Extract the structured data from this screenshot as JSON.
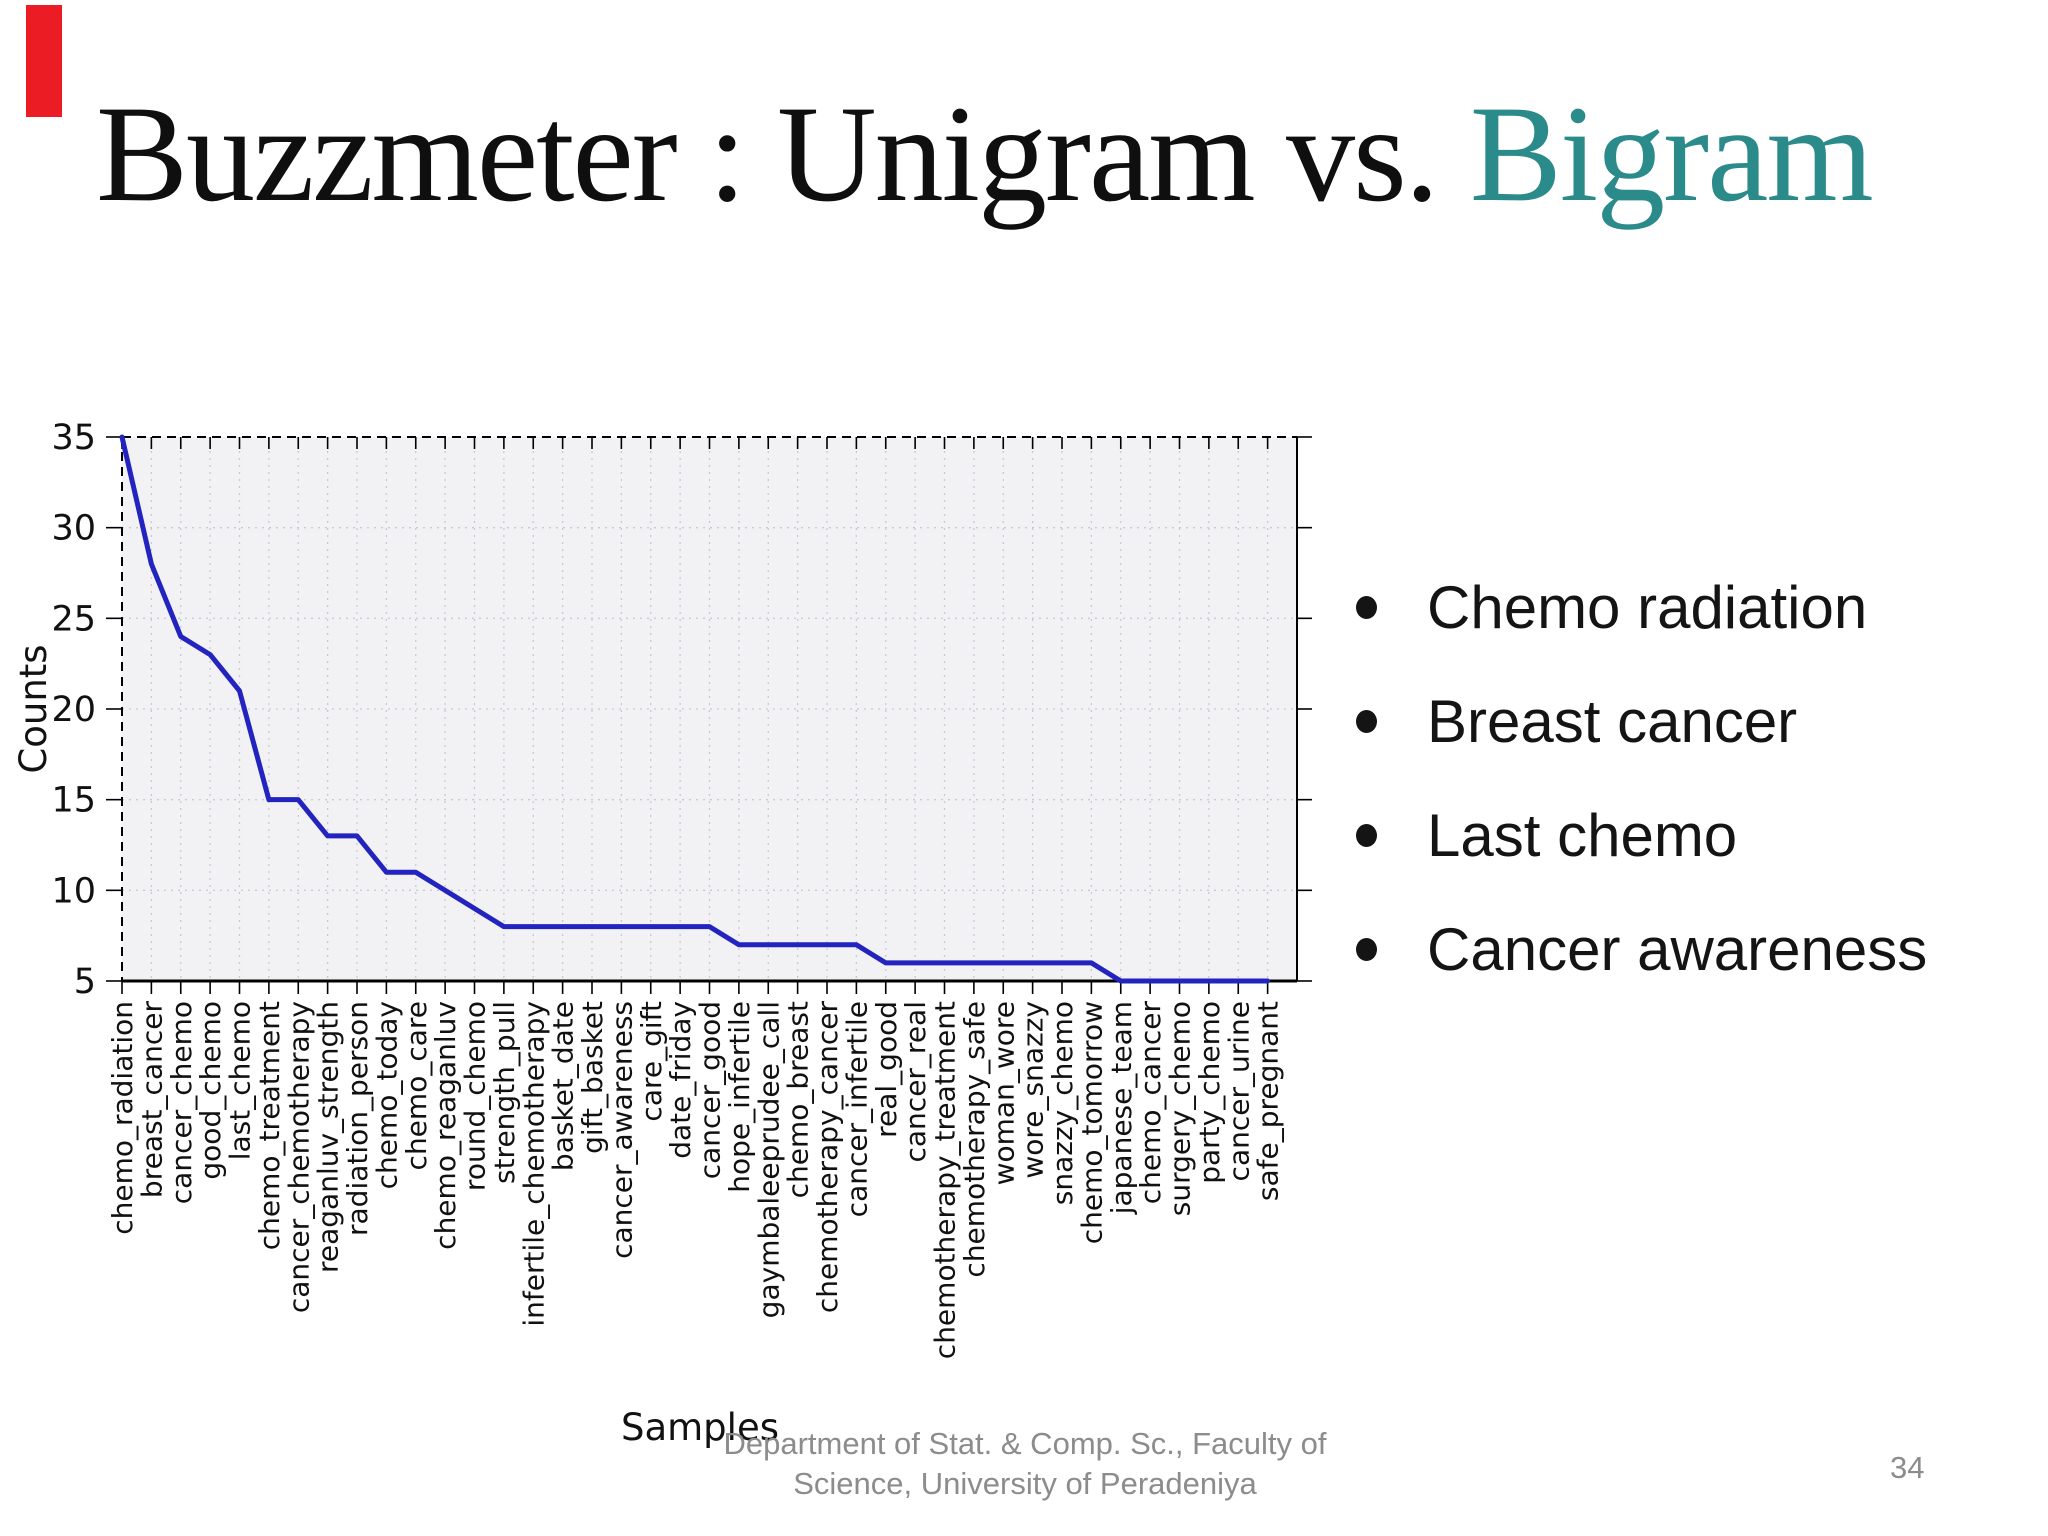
{
  "slide": {
    "title_main": "Buzzmeter : Unigram vs. ",
    "title_accent": "Bigram",
    "accent_color": "#2b8a8a",
    "red_bar_color": "#ec1c24",
    "bullets": [
      "Chemo radiation",
      "Breast cancer",
      "Last chemo",
      "Cancer awareness"
    ],
    "footer_line1": "Department of Stat. & Comp. Sc., Faculty of",
    "footer_line2": "Science, University of Peradeniya",
    "page_number": "34"
  },
  "chart_data": {
    "type": "line",
    "title": "",
    "xlabel": "Samples",
    "ylabel": "Counts",
    "ylim": [
      5,
      35
    ],
    "yticks": [
      5,
      10,
      15,
      20,
      25,
      30,
      35
    ],
    "grid": true,
    "legend": false,
    "line_color": "#2323bf",
    "plot_bg": "#f2f2f4",
    "grid_color": "#c9c9d2",
    "categories": [
      "chemo_radiation",
      "breast_cancer",
      "cancer_chemo",
      "good_chemo",
      "last_chemo",
      "chemo_treatment",
      "cancer_chemotherapy",
      "reaganluv_strength",
      "radiation_person",
      "chemo_today",
      "chemo_care",
      "chemo_reaganluv",
      "round_chemo",
      "strength_pull",
      "infertile_chemotherapy",
      "basket_date",
      "gift_basket",
      "cancer_awareness",
      "care_gift",
      "date_friday",
      "cancer_good",
      "hope_infertile",
      "gaymbaleeprudee_call",
      "chemo_breast",
      "chemotherapy_cancer",
      "cancer_infertile",
      "real_good",
      "cancer_real",
      "chemotherapy_treatment",
      "chemotherapy_safe",
      "woman_wore",
      "wore_snazzy",
      "snazzy_chemo",
      "chemo_tomorrow",
      "japanese_team",
      "chemo_cancer",
      "surgery_chemo",
      "party_chemo",
      "cancer_urine",
      "safe_pregnant"
    ],
    "values": [
      35,
      28,
      24,
      23,
      21,
      15,
      15,
      13,
      13,
      11,
      11,
      10,
      9,
      8,
      8,
      8,
      8,
      8,
      8,
      8,
      8,
      7,
      7,
      7,
      7,
      7,
      6,
      6,
      6,
      6,
      6,
      6,
      6,
      6,
      5,
      5,
      5,
      5,
      5,
      5
    ]
  }
}
